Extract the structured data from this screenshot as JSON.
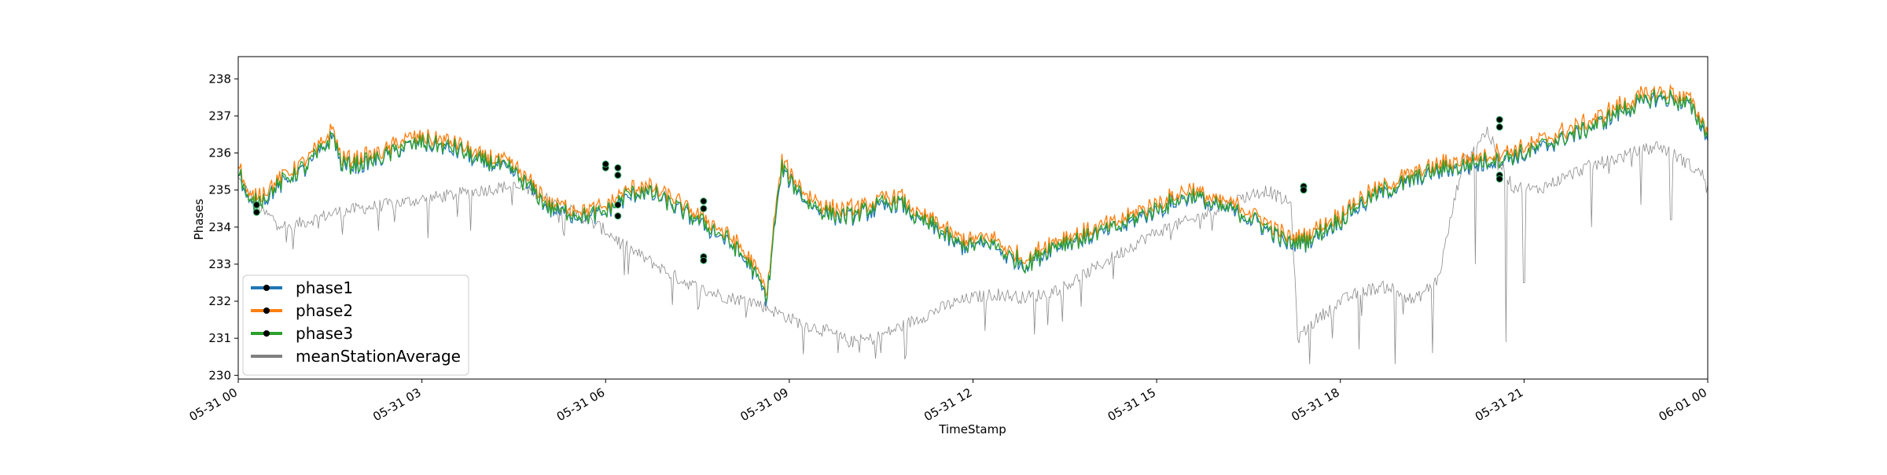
{
  "chart_data": {
    "type": "line",
    "title": "",
    "xlabel": "TimeStamp",
    "ylabel": "Phases",
    "x_ticks": [
      "05-31 00",
      "05-31 03",
      "05-31 06",
      "05-31 09",
      "05-31 12",
      "05-31 15",
      "05-31 18",
      "05-31 21",
      "06-01 00"
    ],
    "y_ticks": [
      230,
      231,
      232,
      233,
      234,
      235,
      236,
      237,
      238
    ],
    "xlim": [
      "05-31 00:00",
      "06-01 00:00"
    ],
    "ylim": [
      229.9,
      238.6
    ],
    "grid": false,
    "legend_position": "lower-left",
    "x_unit": "hours since 05-31 00:00",
    "phase_anchors": [
      [
        0.0,
        235.6
      ],
      [
        0.3,
        234.6
      ],
      [
        0.8,
        234.9
      ],
      [
        1.3,
        235.3
      ],
      [
        1.8,
        235.6
      ],
      [
        2.2,
        236.0
      ],
      [
        2.6,
        236.5
      ],
      [
        2.8,
        235.7
      ],
      [
        3.2,
        235.7
      ],
      [
        3.6,
        235.8
      ],
      [
        4.0,
        235.9
      ],
      [
        4.5,
        236.2
      ],
      [
        5.0,
        236.3
      ],
      [
        5.5,
        236.2
      ],
      [
        6.0,
        236.1
      ],
      [
        6.5,
        235.8
      ],
      [
        7.0,
        235.7
      ],
      [
        7.5,
        235.5
      ],
      [
        8.0,
        235.0
      ],
      [
        8.5,
        234.5
      ],
      [
        9.0,
        234.4
      ],
      [
        9.5,
        234.3
      ],
      [
        10.0,
        234.4
      ],
      [
        10.5,
        234.8
      ],
      [
        11.0,
        235.0
      ],
      [
        11.5,
        234.8
      ],
      [
        12.0,
        234.5
      ],
      [
        12.5,
        234.2
      ],
      [
        13.0,
        233.9
      ],
      [
        13.5,
        233.5
      ],
      [
        14.0,
        232.9
      ],
      [
        14.4,
        232.1
      ],
      [
        14.6,
        234.1
      ],
      [
        14.8,
        235.6
      ],
      [
        15.0,
        235.3
      ],
      [
        15.5,
        234.7
      ],
      [
        16.0,
        234.4
      ],
      [
        16.5,
        234.3
      ],
      [
        17.0,
        234.4
      ],
      [
        17.5,
        234.6
      ],
      [
        18.0,
        234.7
      ],
      [
        18.5,
        234.2
      ],
      [
        19.0,
        234.0
      ],
      [
        19.5,
        233.6
      ],
      [
        20.0,
        233.5
      ],
      [
        20.5,
        233.6
      ],
      [
        21.0,
        233.2
      ],
      [
        21.5,
        233.0
      ],
      [
        22.0,
        233.4
      ],
      [
        22.5,
        233.6
      ],
      [
        23.0,
        233.7
      ],
      [
        23.5,
        233.9
      ],
      [
        24.0,
        234.0
      ],
      [
        24.5,
        234.3
      ],
      [
        25.0,
        234.5
      ],
      [
        25.5,
        234.7
      ],
      [
        26.0,
        234.9
      ],
      [
        26.5,
        234.6
      ],
      [
        27.0,
        234.5
      ],
      [
        27.5,
        234.3
      ],
      [
        28.0,
        234.0
      ],
      [
        28.5,
        233.6
      ],
      [
        29.0,
        233.6
      ],
      [
        29.5,
        233.9
      ],
      [
        30.0,
        234.2
      ],
      [
        30.5,
        234.6
      ],
      [
        31.0,
        234.9
      ],
      [
        31.5,
        235.1
      ],
      [
        32.0,
        235.3
      ],
      [
        32.5,
        235.5
      ],
      [
        33.0,
        235.6
      ],
      [
        33.5,
        235.7
      ],
      [
        34.0,
        235.8
      ],
      [
        34.5,
        235.9
      ],
      [
        35.0,
        236.0
      ],
      [
        35.5,
        236.2
      ],
      [
        36.0,
        236.4
      ],
      [
        36.5,
        236.6
      ],
      [
        37.0,
        236.8
      ],
      [
        37.5,
        237.1
      ],
      [
        38.0,
        237.3
      ],
      [
        38.5,
        237.5
      ],
      [
        39.0,
        237.5
      ],
      [
        39.5,
        237.3
      ],
      [
        40.0,
        236.5
      ]
    ],
    "series": [
      {
        "name": "phase1",
        "color": "#1f77b4",
        "offset": -0.05,
        "outline_color": "#1f5a8a"
      },
      {
        "name": "phase2",
        "color": "#ff7f0e",
        "offset": 0.15,
        "outline_color": "#e0700c"
      },
      {
        "name": "phase3",
        "color": "#2ca02c",
        "offset": 0.0,
        "outline_color": "#2a7d2a"
      },
      {
        "name": "meanStationAverage",
        "color": "#808080",
        "offset": null
      }
    ],
    "markers": [
      {
        "x": 0.3,
        "y": 234.6
      },
      {
        "x": 0.3,
        "y": 234.4
      },
      {
        "x": 6.0,
        "y": 235.6
      },
      {
        "x": 6.0,
        "y": 235.7
      },
      {
        "x": 6.2,
        "y": 235.6
      },
      {
        "x": 6.2,
        "y": 235.4
      },
      {
        "x": 6.2,
        "y": 234.6
      },
      {
        "x": 6.2,
        "y": 234.3
      },
      {
        "x": 7.6,
        "y": 234.7
      },
      {
        "x": 7.6,
        "y": 234.5
      },
      {
        "x": 7.6,
        "y": 233.2
      },
      {
        "x": 7.6,
        "y": 233.1
      },
      {
        "x": 17.4,
        "y": 235.1
      },
      {
        "x": 17.4,
        "y": 235.0
      },
      {
        "x": 20.6,
        "y": 236.9
      },
      {
        "x": 20.6,
        "y": 236.7
      },
      {
        "x": 20.6,
        "y": 235.4
      },
      {
        "x": 20.6,
        "y": 235.3
      }
    ],
    "mean_anchors": [
      [
        0.0,
        235.3
      ],
      [
        0.4,
        234.4
      ],
      [
        0.8,
        234.0
      ],
      [
        1.2,
        234.2
      ],
      [
        1.6,
        234.4
      ],
      [
        2.0,
        234.5
      ],
      [
        2.4,
        234.6
      ],
      [
        2.8,
        234.7
      ],
      [
        3.2,
        234.8
      ],
      [
        3.6,
        234.9
      ],
      [
        4.0,
        235.0
      ],
      [
        4.4,
        235.1
      ],
      [
        4.8,
        235.0
      ],
      [
        5.2,
        234.6
      ],
      [
        5.6,
        234.3
      ],
      [
        6.0,
        233.9
      ],
      [
        6.4,
        233.4
      ],
      [
        6.8,
        233.0
      ],
      [
        7.2,
        232.6
      ],
      [
        7.6,
        232.3
      ],
      [
        8.0,
        232.1
      ],
      [
        8.4,
        232.0
      ],
      [
        8.8,
        231.7
      ],
      [
        9.2,
        231.4
      ],
      [
        9.6,
        231.2
      ],
      [
        10.0,
        230.9
      ],
      [
        10.4,
        231.0
      ],
      [
        10.8,
        231.3
      ],
      [
        11.2,
        231.6
      ],
      [
        11.6,
        231.9
      ],
      [
        12.0,
        232.1
      ],
      [
        12.4,
        232.2
      ],
      [
        12.8,
        232.1
      ],
      [
        13.2,
        232.2
      ],
      [
        13.6,
        232.5
      ],
      [
        14.0,
        232.9
      ],
      [
        14.4,
        233.3
      ],
      [
        14.8,
        233.7
      ],
      [
        15.2,
        234.0
      ],
      [
        15.6,
        234.2
      ],
      [
        16.0,
        234.5
      ],
      [
        16.4,
        234.8
      ],
      [
        16.8,
        235.0
      ],
      [
        17.2,
        234.6
      ],
      [
        17.3,
        231.0
      ],
      [
        17.6,
        231.5
      ],
      [
        18.0,
        232.0
      ],
      [
        18.4,
        232.3
      ],
      [
        18.8,
        232.4
      ],
      [
        19.2,
        232.0
      ],
      [
        19.6,
        232.6
      ],
      [
        20.0,
        235.8
      ],
      [
        20.4,
        236.6
      ],
      [
        20.8,
        235.1
      ],
      [
        21.2,
        235.0
      ],
      [
        21.6,
        235.3
      ],
      [
        22.0,
        235.6
      ],
      [
        22.4,
        235.8
      ],
      [
        22.8,
        236.0
      ],
      [
        23.2,
        236.2
      ],
      [
        23.6,
        235.8
      ],
      [
        24.0,
        235.3
      ]
    ],
    "mean_dips": [
      [
        0.9,
        233.4
      ],
      [
        1.7,
        233.8
      ],
      [
        2.3,
        233.9
      ],
      [
        3.1,
        233.7
      ],
      [
        3.8,
        233.9
      ],
      [
        5.3,
        233.9
      ],
      [
        6.3,
        232.7
      ],
      [
        7.1,
        231.9
      ],
      [
        9.8,
        230.6
      ],
      [
        10.5,
        230.6
      ],
      [
        12.2,
        231.2
      ],
      [
        13.0,
        231.1
      ],
      [
        14.3,
        232.6
      ],
      [
        15.9,
        233.9
      ],
      [
        17.5,
        230.3
      ],
      [
        18.3,
        230.7
      ],
      [
        18.9,
        230.3
      ],
      [
        19.5,
        230.6
      ],
      [
        20.2,
        233.0
      ],
      [
        20.7,
        230.9
      ],
      [
        21.0,
        232.5
      ],
      [
        22.1,
        234.0
      ],
      [
        22.9,
        234.6
      ],
      [
        23.4,
        234.2
      ]
    ]
  },
  "legend": {
    "items": [
      {
        "label": "phase1",
        "color": "#1f77b4"
      },
      {
        "label": "phase2",
        "color": "#ff7f0e"
      },
      {
        "label": "phase3",
        "color": "#2ca02c"
      },
      {
        "label": "meanStationAverage",
        "color": "#808080"
      }
    ]
  }
}
